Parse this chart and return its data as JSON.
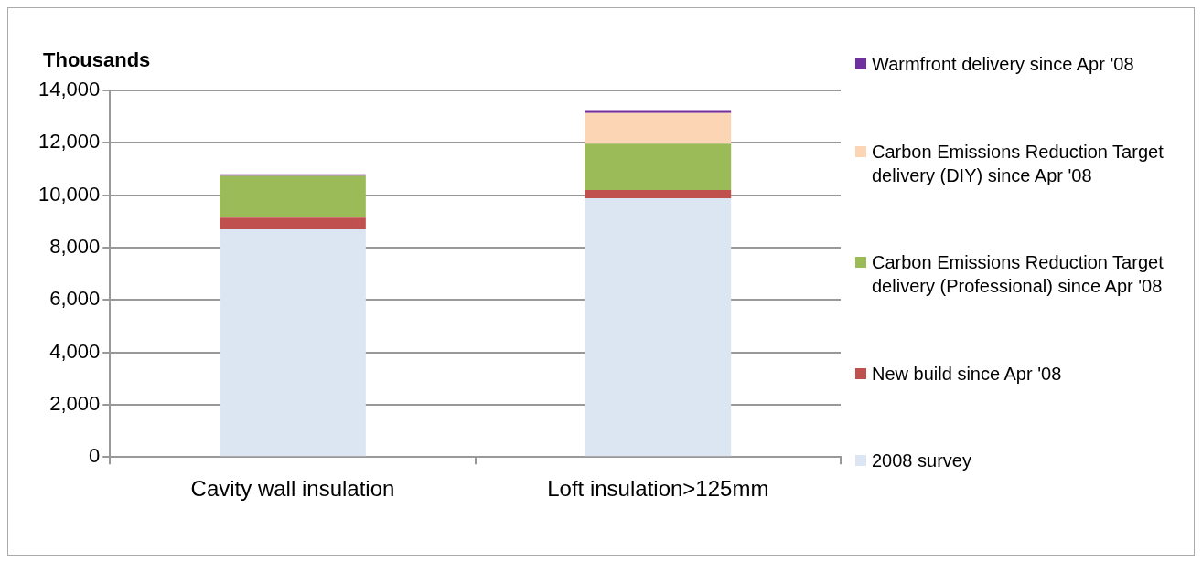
{
  "chart_data": {
    "type": "bar",
    "ylabel": "Thousands",
    "categories": [
      "Cavity wall insulation",
      "Loft insulation>125mm"
    ],
    "stacked": true,
    "ylim": [
      0,
      14000
    ],
    "yticks": [
      0,
      {
        "value": 2000,
        "label": "2,000"
      },
      {
        "value": 4000,
        "label": "4,000"
      },
      {
        "value": 6000,
        "label": "6,000"
      },
      {
        "value": 8000,
        "label": "8,000"
      },
      {
        "value": 10000,
        "label": "10,000"
      },
      {
        "value": 12000,
        "label": "12,000"
      },
      {
        "value": 14000,
        "label": "14,000"
      }
    ],
    "grid": "y",
    "legend": "right",
    "series": [
      {
        "name": "2008 survey",
        "color": "#dce6f2",
        "values": [
          8700,
          9880
        ]
      },
      {
        "name": "New build since Apr '08",
        "color": "#c0504d",
        "values": [
          440,
          320
        ]
      },
      {
        "name": "Carbon Emissions Reduction Target delivery (Professional) since Apr '08",
        "color": "#9bbb59",
        "values": [
          1600,
          1770
        ]
      },
      {
        "name": "Carbon Emissions Reduction Target delivery (DIY) since Apr '08",
        "color": "#fcd5b5",
        "values": [
          0,
          1170
        ]
      },
      {
        "name": "Warmfront delivery since Apr '08",
        "color": "#7030a0",
        "values": [
          60,
          110
        ]
      }
    ]
  }
}
